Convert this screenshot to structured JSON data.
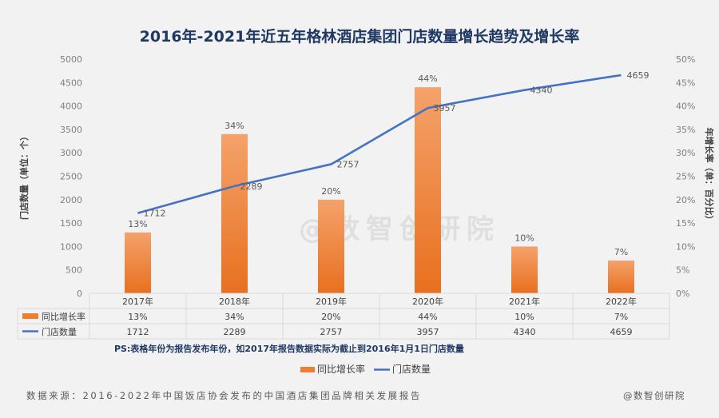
{
  "chart_data": {
    "type": "bar",
    "title": "2016年-2021年近五年格林酒店集团门店数量增长趋势及增长率",
    "categories": [
      "2017年",
      "2018年",
      "2019年",
      "2020年",
      "2021年",
      "2022年"
    ],
    "left_axis": {
      "label": "门店数量（单位：个）",
      "ticks": [
        "0",
        "500",
        "1000",
        "1500",
        "2000",
        "2500",
        "3000",
        "3500",
        "4000",
        "4500",
        "5000"
      ],
      "range": [
        0,
        5000
      ]
    },
    "right_axis": {
      "label": "年增长率（单：百分比）",
      "ticks": [
        "0%",
        "5%",
        "10%",
        "15%",
        "20%",
        "25%",
        "30%",
        "35%",
        "40%",
        "45%",
        "50%"
      ],
      "range": [
        0,
        50
      ]
    },
    "series": [
      {
        "name": "同比增长率",
        "kind": "bar",
        "axis": "right",
        "color": "#ed7d31",
        "values": [
          13,
          34,
          20,
          44,
          10,
          7
        ],
        "labels": [
          "13%",
          "34%",
          "20%",
          "44%",
          "10%",
          "7%"
        ]
      },
      {
        "name": "门店数量",
        "kind": "line",
        "axis": "left",
        "color": "#4472c4",
        "values": [
          1712,
          2289,
          2757,
          3957,
          4340,
          4659
        ],
        "labels": [
          "1712",
          "2289",
          "2757",
          "3957",
          "4340",
          "4659"
        ]
      }
    ],
    "note": "PS:表格年份为报告发布年份，如2017年报告数据实际为截止到2016年1月1日门店数量",
    "legend_position": "bottom",
    "grid": false
  },
  "footer": {
    "source": "数据来源：2016-2022年中国饭店协会发布的中国酒店集团品牌相关发展报告",
    "brand": "@数智创研院"
  },
  "watermark": "@数智创研院"
}
